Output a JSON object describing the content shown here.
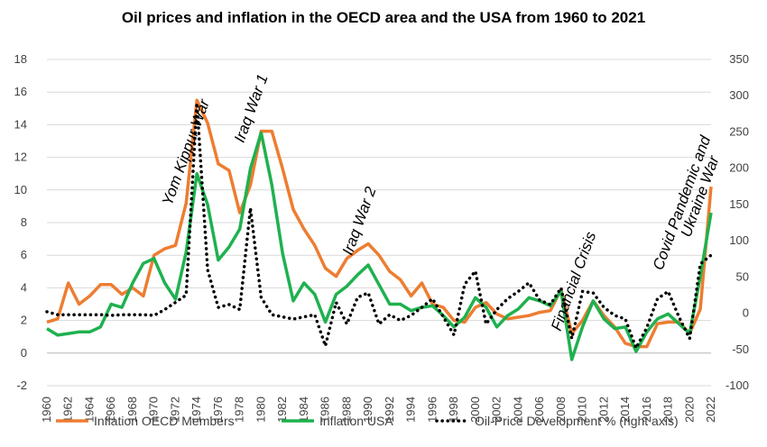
{
  "chart_data": {
    "type": "line",
    "title": "Oil prices and inflation in the OECD area and the USA from 1960 to 2021",
    "x": [
      1960,
      1961,
      1962,
      1963,
      1964,
      1965,
      1966,
      1967,
      1968,
      1969,
      1970,
      1971,
      1972,
      1973,
      1974,
      1975,
      1976,
      1977,
      1978,
      1979,
      1980,
      1981,
      1982,
      1983,
      1984,
      1985,
      1986,
      1987,
      1988,
      1989,
      1990,
      1991,
      1992,
      1993,
      1994,
      1995,
      1996,
      1997,
      1998,
      1999,
      2000,
      2001,
      2002,
      2003,
      2004,
      2005,
      2006,
      2007,
      2008,
      2009,
      2010,
      2011,
      2012,
      2013,
      2014,
      2015,
      2016,
      2017,
      2018,
      2019,
      2020,
      2021,
      2022
    ],
    "x_ticks": [
      1960,
      1962,
      1964,
      1966,
      1968,
      1970,
      1972,
      1974,
      1976,
      1978,
      1980,
      1982,
      1984,
      1986,
      1988,
      1990,
      1992,
      1994,
      1996,
      1998,
      2000,
      2002,
      2004,
      2006,
      2008,
      2010,
      2012,
      2014,
      2016,
      2018,
      2020,
      2022
    ],
    "ylim_left": [
      -2,
      18
    ],
    "yticks_left": [
      -2,
      0,
      2,
      4,
      6,
      8,
      10,
      12,
      14,
      16,
      18
    ],
    "ylim_right": [
      -100,
      350
    ],
    "yticks_right": [
      -100,
      -50,
      0,
      50,
      100,
      150,
      200,
      250,
      300,
      350
    ],
    "grid": true,
    "legend_position": "bottom",
    "series": [
      {
        "name": "Inflation OECD Members",
        "axis": "left",
        "color": "#ED7D31",
        "style": "solid",
        "values": [
          1.9,
          2.1,
          4.3,
          3.0,
          3.5,
          4.2,
          4.2,
          3.6,
          4.0,
          3.5,
          6.0,
          6.4,
          6.6,
          9.2,
          15.5,
          14.1,
          11.6,
          11.2,
          8.6,
          10.3,
          13.6,
          13.6,
          11.3,
          8.8,
          7.6,
          6.6,
          5.2,
          4.7,
          5.8,
          6.3,
          6.7,
          6.0,
          5.0,
          4.5,
          3.5,
          4.3,
          3.0,
          2.8,
          2.0,
          1.9,
          2.8,
          3.1,
          2.4,
          2.1,
          2.2,
          2.3,
          2.5,
          2.6,
          3.9,
          1.2,
          2.0,
          3.2,
          2.3,
          1.6,
          0.6,
          0.4,
          0.4,
          1.8,
          1.9,
          1.9,
          1.2,
          2.7,
          10.2
        ]
      },
      {
        "name": "Inflation USA",
        "axis": "left",
        "color": "#1FB14F",
        "style": "solid",
        "values": [
          1.5,
          1.1,
          1.2,
          1.3,
          1.3,
          1.6,
          3.0,
          2.8,
          4.3,
          5.5,
          5.8,
          4.3,
          3.3,
          6.2,
          11.0,
          9.1,
          5.7,
          6.5,
          7.6,
          11.3,
          13.5,
          10.3,
          6.1,
          3.2,
          4.3,
          3.6,
          1.9,
          3.6,
          4.1,
          4.8,
          5.4,
          4.2,
          3.0,
          3.0,
          2.6,
          2.8,
          2.9,
          2.3,
          1.6,
          2.2,
          3.4,
          2.8,
          1.6,
          2.3,
          2.7,
          3.4,
          3.2,
          2.9,
          3.8,
          -0.4,
          1.6,
          3.2,
          2.1,
          1.5,
          1.6,
          0.1,
          1.3,
          2.1,
          2.4,
          1.8,
          1.2,
          4.7,
          8.6
        ]
      },
      {
        "name": "Oil-Price Development % (right axis)",
        "axis": "right",
        "color": "#000000",
        "style": "dotted",
        "values": [
          2,
          -2,
          -2,
          -2,
          -2,
          -2,
          -3,
          -2,
          -2,
          -2,
          -3,
          5,
          15,
          25,
          290,
          60,
          8,
          12,
          5,
          145,
          22,
          -2,
          -5,
          -8,
          -5,
          -2,
          -45,
          15,
          -15,
          22,
          28,
          -15,
          -2,
          -10,
          -3,
          8,
          20,
          -5,
          -30,
          40,
          58,
          -15,
          5,
          20,
          30,
          42,
          18,
          12,
          35,
          -35,
          30,
          28,
          8,
          -3,
          -8,
          -48,
          -20,
          20,
          30,
          -5,
          -35,
          68,
          80
        ]
      }
    ],
    "annotations": [
      {
        "text": "Yom Kippur War",
        "x": 1973.4,
        "y": 12.2
      },
      {
        "text": "Iraq War 1",
        "x": 1979.5,
        "y": 14.9
      },
      {
        "text": "Iraq War 2",
        "x": 1989.6,
        "y": 8.0
      },
      {
        "text": "Financial Crisis",
        "x": 2009.6,
        "y": 4.3
      },
      {
        "text": "Covid Pandemic and",
        "x": 2019.7,
        "y": 9.1
      },
      {
        "text": "Ukraine War",
        "x": 2021.4,
        "y": 9.5
      }
    ]
  }
}
